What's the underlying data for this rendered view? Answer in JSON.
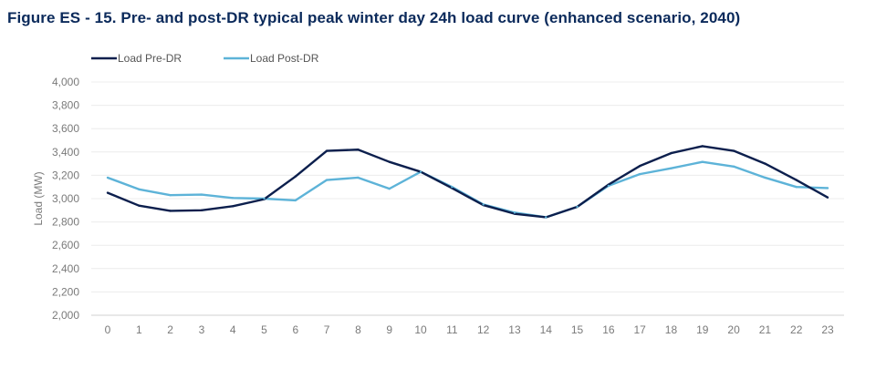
{
  "chart_data": {
    "type": "line",
    "title": "Figure ES - 15. Pre- and post-DR typical peak winter day 24h load curve (enhanced scenario, 2040)",
    "xlabel": "",
    "ylabel": "Load (MW)",
    "x": [
      0,
      1,
      2,
      3,
      4,
      5,
      6,
      7,
      8,
      9,
      10,
      11,
      12,
      13,
      14,
      15,
      16,
      17,
      18,
      19,
      20,
      21,
      22,
      23
    ],
    "ylim": [
      2000,
      4000
    ],
    "yticks": [
      2000,
      2200,
      2400,
      2600,
      2800,
      3000,
      3200,
      3400,
      3600,
      3800,
      4000
    ],
    "ytick_labels": [
      "2,000",
      "2,200",
      "2,400",
      "2,600",
      "2,800",
      "3,000",
      "3,200",
      "3,400",
      "3,600",
      "3,800",
      "4,000"
    ],
    "grid": "horizontal",
    "legend_position": "top-left",
    "series": [
      {
        "name": "Load Pre-DR",
        "color": "#0c1f4d",
        "values": [
          3050,
          2940,
          2895,
          2900,
          2935,
          2995,
          3190,
          3410,
          3420,
          3315,
          3230,
          3090,
          2945,
          2870,
          2840,
          2930,
          3120,
          3280,
          3390,
          3450,
          3410,
          3300,
          3160,
          3010
        ]
      },
      {
        "name": "Load Post-DR",
        "color": "#5db3d8",
        "values": [
          3180,
          3080,
          3030,
          3035,
          3005,
          3000,
          2985,
          3160,
          3180,
          3085,
          3230,
          3100,
          2950,
          2880,
          2840,
          2930,
          3110,
          3210,
          3260,
          3315,
          3275,
          3180,
          3100,
          3090
        ]
      }
    ]
  }
}
